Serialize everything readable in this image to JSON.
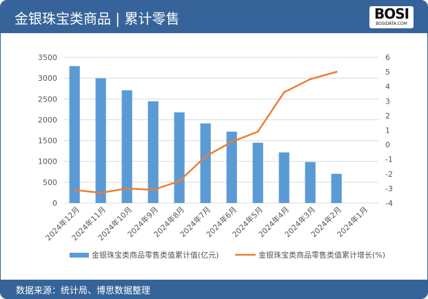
{
  "header": {
    "title": "金银珠宝类商品 | 累计零售",
    "logo": "BOSI",
    "logo_sub": "BOSIDATA.COM"
  },
  "footer": {
    "source": "数据来源：统计局、博思数据整理"
  },
  "colors": {
    "bar": "#5b9bd5",
    "line": "#ed7d31",
    "header": "#36649a"
  },
  "chart_data": {
    "type": "bar+line",
    "categories": [
      "2024年12月",
      "2024年11月",
      "2024年10月",
      "2024年9月",
      "2024年8月",
      "2024年7月",
      "2024年6月",
      "2024年5月",
      "2024年4月",
      "2024年3月",
      "2024年2月",
      "2024年1月"
    ],
    "series": [
      {
        "name": "金银珠宝类商品零售类值累计值(亿元)",
        "type": "bar",
        "axis": "left",
        "values": [
          3290,
          2997,
          2709,
          2444,
          2178,
          1913,
          1714,
          1449,
          1216,
          984,
          702,
          null
        ]
      },
      {
        "name": "金银珠宝类商品零售类值累计增长(%)",
        "type": "line",
        "axis": "right",
        "values": [
          -3.1,
          -3.3,
          -3.0,
          -3.1,
          -2.5,
          -0.8,
          0.2,
          0.9,
          3.6,
          4.5,
          5.0,
          null
        ]
      }
    ],
    "ylim_left": [
      0,
      3500
    ],
    "yticks_left": [
      0,
      500,
      1000,
      1500,
      2000,
      2500,
      3000,
      3500
    ],
    "ylim_right": [
      -4,
      6
    ],
    "yticks_right": [
      -4,
      -3,
      -2,
      -1,
      0,
      1,
      2,
      3,
      4,
      5,
      6
    ],
    "grid": true,
    "legend": "bottom"
  }
}
